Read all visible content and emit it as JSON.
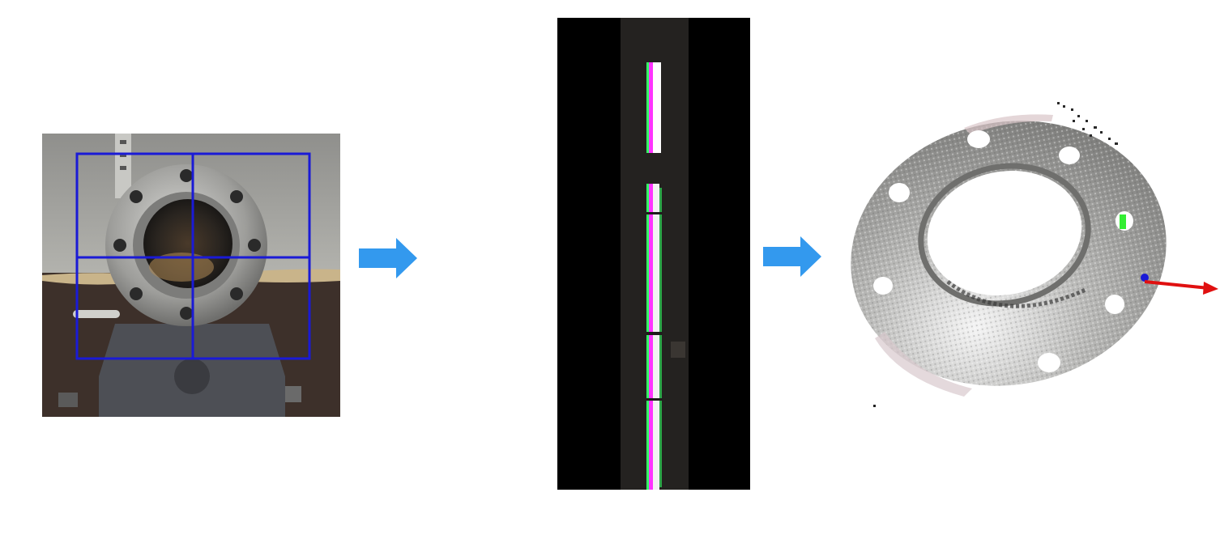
{
  "figure": {
    "stages": [
      {
        "id": "input-image-with-grid",
        "grid": {
          "rows": 2,
          "cols": 2
        },
        "grid_color": "#1a1ad6"
      },
      {
        "id": "projected-stripe-image",
        "stripe_colors": [
          "#ff33ff",
          "#33ff66",
          "#ffffff"
        ]
      },
      {
        "id": "point-cloud-with-axis",
        "axis_color": "#e01010"
      }
    ],
    "arrow_color": "#3399ee"
  }
}
